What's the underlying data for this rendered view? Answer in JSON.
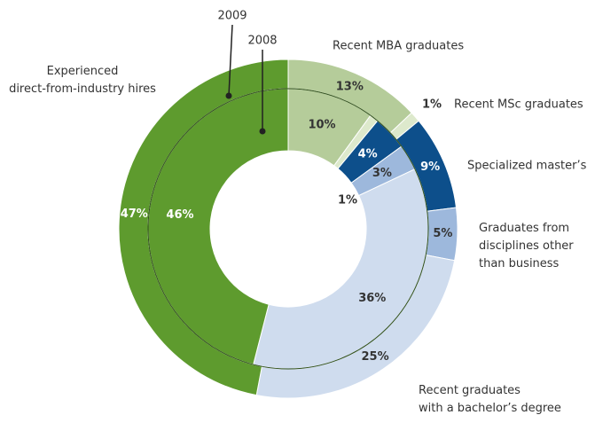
{
  "chart_data": {
    "type": "donut",
    "categories": [
      "Recent MBA graduates",
      "Recent MSc graduates",
      "Specialized master’s",
      "Graduates from\ndisciplines other\nthan business",
      "Recent graduates\nwith a bachelor’s degree",
      "Experienced\ndirect-from-industry hires"
    ],
    "colors": [
      "#b5cc9a",
      "#dde9cc",
      "#0d4f8b",
      "#9db8dc",
      "#cfdcee",
      "#5e9b2e"
    ],
    "series": [
      {
        "name": "2009",
        "values": [
          13,
          1,
          9,
          5,
          25,
          47
        ],
        "value_labels": [
          "13%",
          "1%",
          "9%",
          "5%",
          "25%",
          "47%"
        ]
      },
      {
        "name": "2008",
        "values": [
          10,
          1,
          4,
          3,
          36,
          46
        ],
        "value_labels": [
          "10%",
          "1%",
          "4%",
          "3%",
          "36%",
          "46%"
        ]
      }
    ]
  }
}
